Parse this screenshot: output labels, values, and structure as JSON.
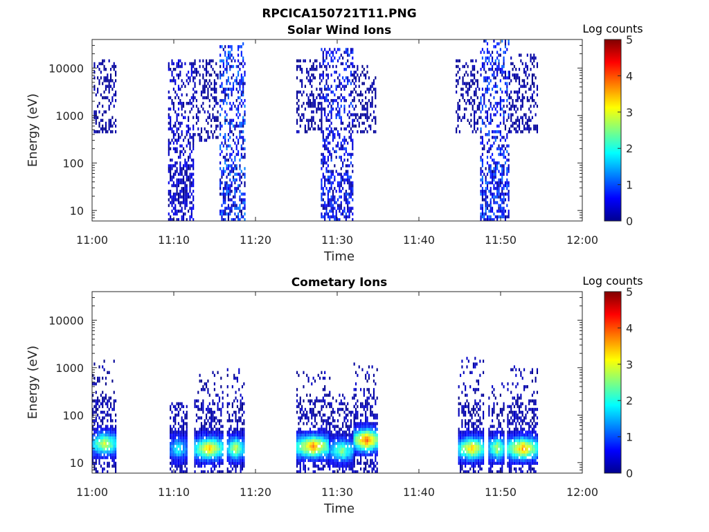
{
  "figure_title": "RPCICA150721T11.PNG",
  "chart_data": [
    {
      "type": "heatmap",
      "title": "Solar Wind Ions",
      "xlabel": "Time",
      "ylabel": "Energy (eV)",
      "x_ticks": [
        "11:00",
        "11:10",
        "11:20",
        "11:30",
        "11:40",
        "11:50",
        "12:00"
      ],
      "xlim": [
        "11:00",
        "12:00"
      ],
      "y_scale": "log",
      "y_ticks": [
        10,
        100,
        1000,
        10000
      ],
      "y_tick_labels": [
        "10",
        "100",
        "1000",
        "10000"
      ],
      "ylim": [
        6,
        40000
      ],
      "colorbar": {
        "label": "Log counts",
        "range": [
          0,
          5
        ],
        "ticks": [
          "0",
          "1",
          "2",
          "3",
          "4",
          "5"
        ]
      },
      "activity_intervals": [
        {
          "start_min": 0.2,
          "end_min": 3.0,
          "e_low": 400,
          "e_high": 15000,
          "peak_log_counts": 0.3
        },
        {
          "start_min": 9.3,
          "end_min": 12.3,
          "e_low": 6,
          "e_high": 15000,
          "peak_log_counts": 0.6
        },
        {
          "start_min": 12.3,
          "end_min": 15.3,
          "e_low": 300,
          "e_high": 15000,
          "peak_log_counts": 0.3
        },
        {
          "start_min": 15.6,
          "end_min": 18.6,
          "e_low": 6,
          "e_high": 35000,
          "peak_log_counts": 1.3
        },
        {
          "start_min": 25.0,
          "end_min": 28.0,
          "e_low": 400,
          "e_high": 15000,
          "peak_log_counts": 0.3
        },
        {
          "start_min": 28.0,
          "end_min": 31.8,
          "e_low": 6,
          "e_high": 25000,
          "peak_log_counts": 1.0
        },
        {
          "start_min": 31.8,
          "end_min": 34.8,
          "e_low": 400,
          "e_high": 12000,
          "peak_log_counts": 0.3
        },
        {
          "start_min": 44.5,
          "end_min": 47.5,
          "e_low": 400,
          "e_high": 15000,
          "peak_log_counts": 0.3
        },
        {
          "start_min": 47.5,
          "end_min": 51.0,
          "e_low": 6,
          "e_high": 40000,
          "peak_log_counts": 1.2
        },
        {
          "start_min": 51.0,
          "end_min": 54.5,
          "e_low": 400,
          "e_high": 20000,
          "peak_log_counts": 0.3
        }
      ]
    },
    {
      "type": "heatmap",
      "title": "Cometary Ions",
      "xlabel": "Time",
      "ylabel": "Energy (eV)",
      "x_ticks": [
        "11:00",
        "11:10",
        "11:20",
        "11:30",
        "11:40",
        "11:50",
        "12:00"
      ],
      "xlim": [
        "11:00",
        "12:00"
      ],
      "y_scale": "log",
      "y_ticks": [
        10,
        100,
        1000,
        10000
      ],
      "y_tick_labels": [
        "10",
        "100",
        "1000",
        "10000"
      ],
      "ylim": [
        6,
        40000
      ],
      "colorbar": {
        "label": "Log counts",
        "range": [
          0,
          5
        ],
        "ticks": [
          "0",
          "1",
          "2",
          "3",
          "4",
          "5"
        ]
      },
      "activity_intervals": [
        {
          "start_min": 0.0,
          "end_min": 2.9,
          "e_low": 6,
          "e_high": 1600,
          "peak_log_counts": 2.8,
          "peak_energy": 25
        },
        {
          "start_min": 9.5,
          "end_min": 11.5,
          "e_low": 6,
          "e_high": 200,
          "peak_log_counts": 1.8,
          "peak_energy": 20
        },
        {
          "start_min": 12.5,
          "end_min": 16.0,
          "e_low": 6,
          "e_high": 900,
          "peak_log_counts": 3.2,
          "peak_energy": 20
        },
        {
          "start_min": 16.5,
          "end_min": 18.5,
          "e_low": 6,
          "e_high": 1000,
          "peak_log_counts": 2.7,
          "peak_energy": 20
        },
        {
          "start_min": 25.0,
          "end_min": 29.0,
          "e_low": 6,
          "e_high": 900,
          "peak_log_counts": 3.5,
          "peak_energy": 22
        },
        {
          "start_min": 29.0,
          "end_min": 32.0,
          "e_low": 6,
          "e_high": 300,
          "peak_log_counts": 2.3,
          "peak_energy": 18
        },
        {
          "start_min": 32.0,
          "end_min": 35.0,
          "e_low": 6,
          "e_high": 1300,
          "peak_log_counts": 3.8,
          "peak_energy": 30
        },
        {
          "start_min": 44.8,
          "end_min": 48.0,
          "e_low": 6,
          "e_high": 1800,
          "peak_log_counts": 3.2,
          "peak_energy": 20
        },
        {
          "start_min": 48.5,
          "end_min": 50.5,
          "e_low": 6,
          "e_high": 500,
          "peak_log_counts": 2.6,
          "peak_energy": 20
        },
        {
          "start_min": 50.8,
          "end_min": 54.5,
          "e_low": 6,
          "e_high": 1100,
          "peak_log_counts": 3.4,
          "peak_energy": 20
        }
      ]
    }
  ]
}
